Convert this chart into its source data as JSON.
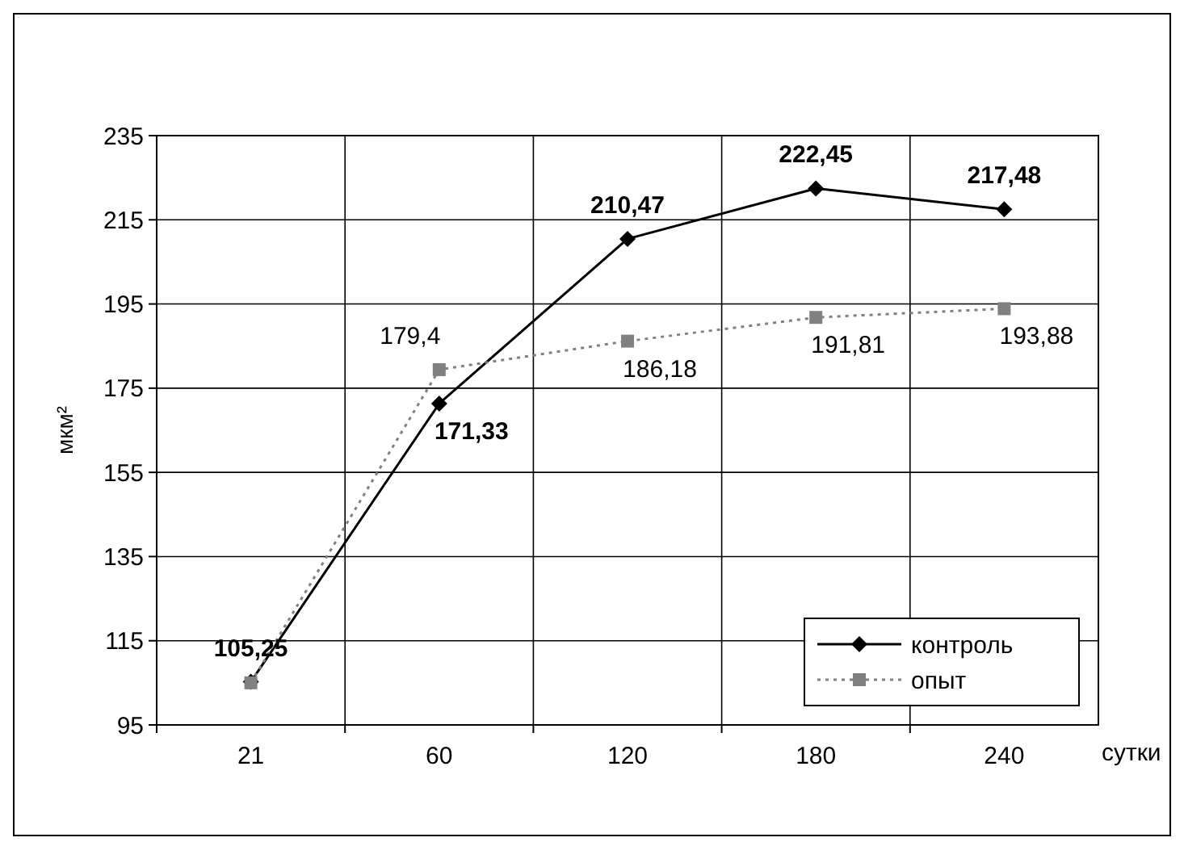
{
  "chart_data": {
    "type": "line",
    "categories": [
      "21",
      "60",
      "120",
      "180",
      "240"
    ],
    "xlabel": "сутки",
    "ylabel": "мкм²",
    "ylim": [
      95,
      235
    ],
    "yticks": [
      95,
      115,
      135,
      155,
      175,
      195,
      215,
      235
    ],
    "grid": true,
    "legend": "bottom right",
    "series": [
      {
        "name": "контроль",
        "color": "#000000",
        "marker": "diamond",
        "line_style": "solid",
        "values": [
          105.25,
          171.33,
          210.47,
          222.45,
          217.48
        ],
        "value_labels": [
          "105,25",
          "171,33",
          "210,47",
          "222,45",
          "217,48"
        ]
      },
      {
        "name": "опыт",
        "color": "#808080",
        "marker": "square",
        "line_style": "dotted",
        "values": [
          105,
          179.4,
          186.18,
          191.81,
          193.88
        ],
        "value_labels": [
          null,
          "179,4",
          "186,18",
          "191,81",
          "193,88"
        ]
      }
    ]
  }
}
